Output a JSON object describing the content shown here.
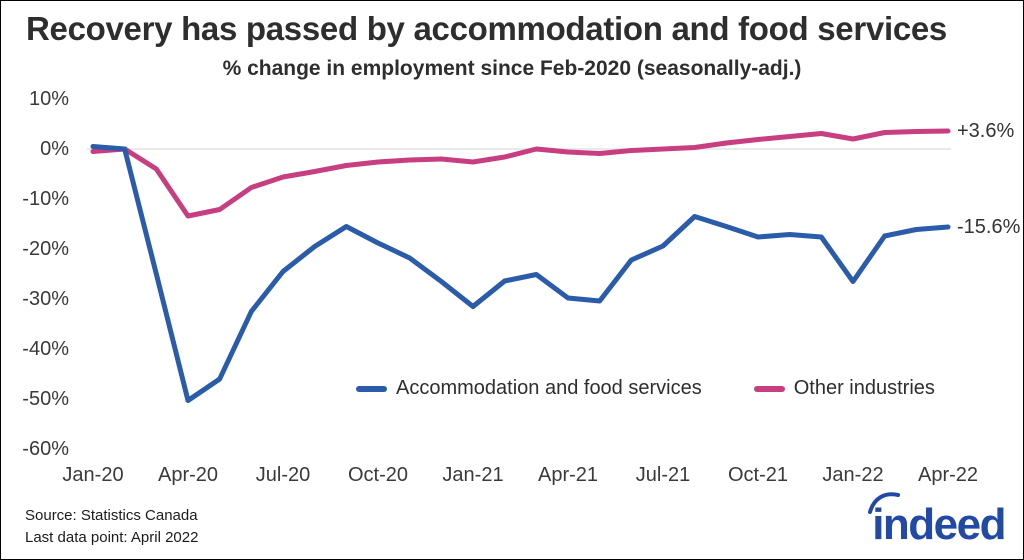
{
  "header": {
    "title": "Recovery has passed by accommodation and food services",
    "subtitle": "% change in employment since Feb-2020 (seasonally-adj.)"
  },
  "chart_data": {
    "type": "line",
    "x": [
      "Jan-20",
      "Feb-20",
      "Mar-20",
      "Apr-20",
      "May-20",
      "Jun-20",
      "Jul-20",
      "Aug-20",
      "Sep-20",
      "Oct-20",
      "Nov-20",
      "Dec-20",
      "Jan-21",
      "Feb-21",
      "Mar-21",
      "Apr-21",
      "May-21",
      "Jun-21",
      "Jul-21",
      "Aug-21",
      "Sep-21",
      "Oct-21",
      "Nov-21",
      "Dec-21",
      "Jan-22",
      "Feb-22",
      "Mar-22",
      "Apr-22"
    ],
    "x_tick_labels": [
      "Jan-20",
      "Apr-20",
      "Jul-20",
      "Oct-20",
      "Jan-21",
      "Apr-21",
      "Jul-21",
      "Oct-21",
      "Jan-22",
      "Apr-22"
    ],
    "y_ticks": [
      10,
      0,
      -10,
      -20,
      -30,
      -40,
      -50,
      -60
    ],
    "ylim": [
      -60,
      10
    ],
    "ylabel": "",
    "xlabel": "",
    "grid": "zero-line-only",
    "legend_position": "inside-bottom-center",
    "series": [
      {
        "name": "Accommodation and food services",
        "color": "#2a5caa",
        "end_label": "-15.6%",
        "values": [
          0.5,
          0,
          -25,
          -50.3,
          -46,
          -32.5,
          -24.5,
          -19.5,
          -15.5,
          -18.8,
          -21.8,
          -26.5,
          -31.5,
          -26.4,
          -25.1,
          -29.8,
          -30.4,
          -22.2,
          -19.4,
          -13.5,
          -15.5,
          -17.6,
          -17.1,
          -17.6,
          -26.5,
          -17.4,
          -16.1,
          -15.6
        ]
      },
      {
        "name": "Other industries",
        "color": "#c73e81",
        "end_label": "+3.6%",
        "values": [
          -0.5,
          0,
          -4,
          -13.4,
          -12.1,
          -7.7,
          -5.6,
          -4.5,
          -3.3,
          -2.6,
          -2.2,
          -2.0,
          -2.6,
          -1.6,
          0.0,
          -0.6,
          -0.9,
          -0.3,
          0.0,
          0.3,
          1.2,
          1.9,
          2.5,
          3.1,
          2.0,
          3.3,
          3.5,
          3.6
        ]
      }
    ]
  },
  "footer": {
    "source_line1": "Source: Statistics Canada",
    "source_line2": "Last data point: April 2022",
    "logo_text": "indeed"
  },
  "colors": {
    "blue": "#2a5caa",
    "pink": "#c73e81",
    "gridline": "#e4e4e4",
    "text_dark": "#2e2e2e",
    "logo_blue": "#2149a5"
  }
}
